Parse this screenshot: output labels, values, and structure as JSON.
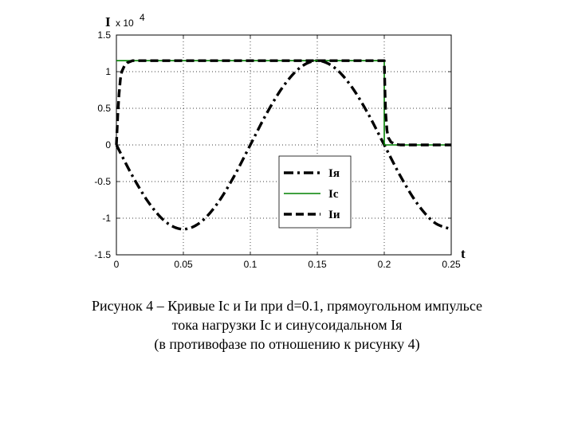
{
  "chart_data": {
    "type": "line",
    "xlabel": "t",
    "ylabel": "I",
    "y_multiplier": "x 10",
    "y_multiplier_exp": "4",
    "xlim": [
      0,
      0.25
    ],
    "ylim": [
      -1.5,
      1.5
    ],
    "x_ticks": [
      "0",
      "0.05",
      "0.1",
      "0.15",
      "0.2",
      "0.25"
    ],
    "y_ticks": [
      "1.5",
      "1",
      "0.5",
      "0",
      "-0.5",
      "-1",
      "-1.5"
    ],
    "grid": true,
    "legend_position": "center-right",
    "series": [
      {
        "name": "Iя",
        "style": "dash-dot",
        "color": "#000000",
        "x": [
          0,
          0.0125,
          0.025,
          0.0375,
          0.05,
          0.0625,
          0.075,
          0.0875,
          0.1,
          0.1125,
          0.125,
          0.1375,
          0.15,
          0.1625,
          0.175,
          0.1875,
          0.2,
          0.2125,
          0.225,
          0.2375,
          0.25
        ],
        "values": [
          0,
          -0.44,
          -0.81,
          -1.06,
          -1.15,
          -1.06,
          -0.81,
          -0.44,
          0,
          0.44,
          0.81,
          1.06,
          1.15,
          1.06,
          0.81,
          0.44,
          0,
          -0.44,
          -0.81,
          -1.06,
          -1.15
        ]
      },
      {
        "name": "Ic",
        "style": "solid",
        "color": "#008000",
        "x": [
          0,
          0.2,
          0.2,
          0.25
        ],
        "values": [
          1.15,
          1.15,
          0,
          0
        ]
      },
      {
        "name": "Iи",
        "style": "dashed",
        "color": "#000000",
        "x": [
          0,
          0.001,
          0.002,
          0.003,
          0.004,
          0.006,
          0.008,
          0.012,
          0.2,
          0.2005,
          0.201,
          0.202,
          0.203,
          0.205,
          0.208,
          0.212,
          0.25
        ],
        "values": [
          0,
          0.4,
          0.7,
          0.9,
          1.0,
          1.08,
          1.12,
          1.15,
          1.15,
          0.75,
          0.45,
          0.2,
          0.1,
          0.04,
          0.01,
          0,
          0
        ]
      }
    ]
  },
  "caption": {
    "line1": "Рисунок 4 – Кривые Ic и Iи при d=0.1, прямоугольном импульсе",
    "line2": "тока нагрузки Ic и синусоидальном Iя",
    "line3": "(в противофазе по отношению к рисунку 4)"
  }
}
